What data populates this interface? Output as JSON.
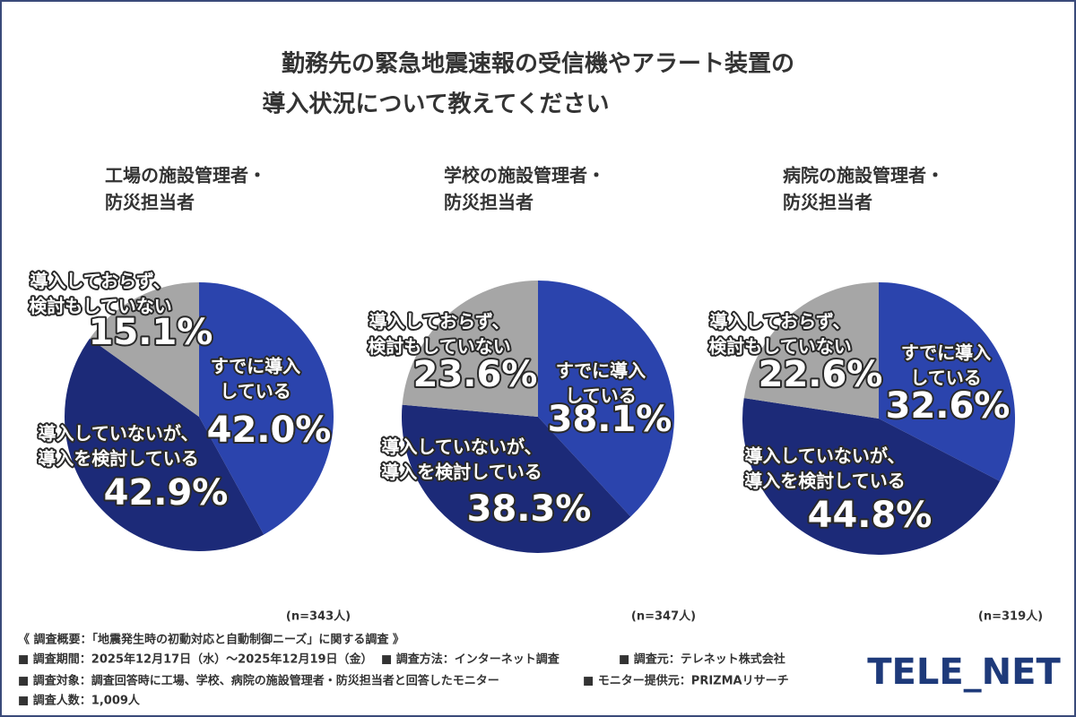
{
  "title": [
    "勤務先の緊急地震速報の受信機やアラート装置の",
    "導入状況について教えてください"
  ],
  "chart_data": [
    {
      "type": "pie",
      "title": [
        "工場の施設管理者・",
        "防災担当者"
      ],
      "categories": [
        [
          "すでに導入",
          "している"
        ],
        [
          "導入していないが、",
          "導入を検討している"
        ],
        [
          "導入しておらず、",
          "検討もしていない"
        ]
      ],
      "values": [
        42.0,
        42.9,
        15.1
      ],
      "value_labels": [
        "42.0%",
        "42.9%",
        "15.1%"
      ],
      "colors": [
        "#2b44ad",
        "#1c2a78",
        "#a6a6a6"
      ],
      "sample": "(n=343人)"
    },
    {
      "type": "pie",
      "title": [
        "学校の施設管理者・",
        "防災担当者"
      ],
      "categories": [
        [
          "すでに導入",
          "している"
        ],
        [
          "導入していないが、",
          "導入を検討している"
        ],
        [
          "導入しておらず、",
          "検討もしていない"
        ]
      ],
      "values": [
        38.1,
        38.3,
        23.6
      ],
      "value_labels": [
        "38.1%",
        "38.3%",
        "23.6%"
      ],
      "colors": [
        "#2b44ad",
        "#1c2a78",
        "#a6a6a6"
      ],
      "sample": "(n=347人)"
    },
    {
      "type": "pie",
      "title": [
        "病院の施設管理者・",
        "防災担当者"
      ],
      "categories": [
        [
          "すでに導入",
          "している"
        ],
        [
          "導入していないが、",
          "導入を検討している"
        ],
        [
          "導入しておらず、",
          "検討もしていない"
        ]
      ],
      "values": [
        32.6,
        44.8,
        22.6
      ],
      "value_labels": [
        "32.6%",
        "44.8%",
        "22.6%"
      ],
      "colors": [
        "#2b44ad",
        "#1c2a78",
        "#a6a6a6"
      ],
      "sample": "(n=319人)"
    }
  ],
  "notes": [
    [
      "《 調査概要：「地震発生時の初動対応と自動制御ニーズ」に関する調査 》"
    ],
    [
      "■ 調査期間：2025年12月17日（水）～2025年12月19日（金）",
      "■ 調査方法：インターネット調査",
      "■ 調査元：テレネット株式会社"
    ],
    [
      "■ 調査対象：調査回答時に工場、学校、病院の施設管理者・防災担当者と回答したモニター",
      "■ モニター提供元：PRIZMAリサーチ"
    ],
    [
      "■ 調査人数：1,009人"
    ]
  ],
  "logo": "TELE_NET"
}
